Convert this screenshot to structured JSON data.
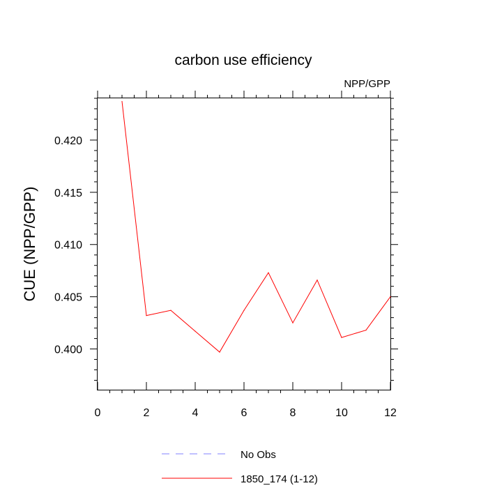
{
  "chart_data": {
    "type": "line",
    "title": "carbon use efficiency",
    "subtitle": "NPP/GPP",
    "xlabel": "",
    "ylabel": "CUE  (NPP/GPP)",
    "xlim": [
      0,
      12
    ],
    "ylim": [
      0.3961,
      0.424
    ],
    "x_ticks": [
      0,
      2,
      4,
      6,
      8,
      10,
      12
    ],
    "x_tick_labels": [
      "0",
      "2",
      "4",
      "6",
      "8",
      "10",
      "12"
    ],
    "y_ticks": [
      0.4,
      0.405,
      0.41,
      0.415,
      0.42
    ],
    "y_tick_labels": [
      "0.400",
      "0.405",
      "0.410",
      "0.415",
      "0.420"
    ],
    "grid": false,
    "legend_position": "bottom",
    "series": [
      {
        "name": "1850_174 (1-12)",
        "color": "#ff0000",
        "style": "solid",
        "x": [
          1,
          2,
          3,
          4,
          5,
          6,
          7,
          8,
          9,
          10,
          11,
          12
        ],
        "y": [
          0.4237,
          0.4032,
          0.4037,
          0.4017,
          0.3997,
          0.4037,
          0.4073,
          0.4025,
          0.4066,
          0.4011,
          0.4018,
          0.405
        ]
      }
    ],
    "legend": [
      {
        "label": "No Obs",
        "color": "#8080ff",
        "style": "dashed"
      },
      {
        "label": "1850_174 (1-12)",
        "color": "#ff0000",
        "style": "solid"
      }
    ]
  }
}
